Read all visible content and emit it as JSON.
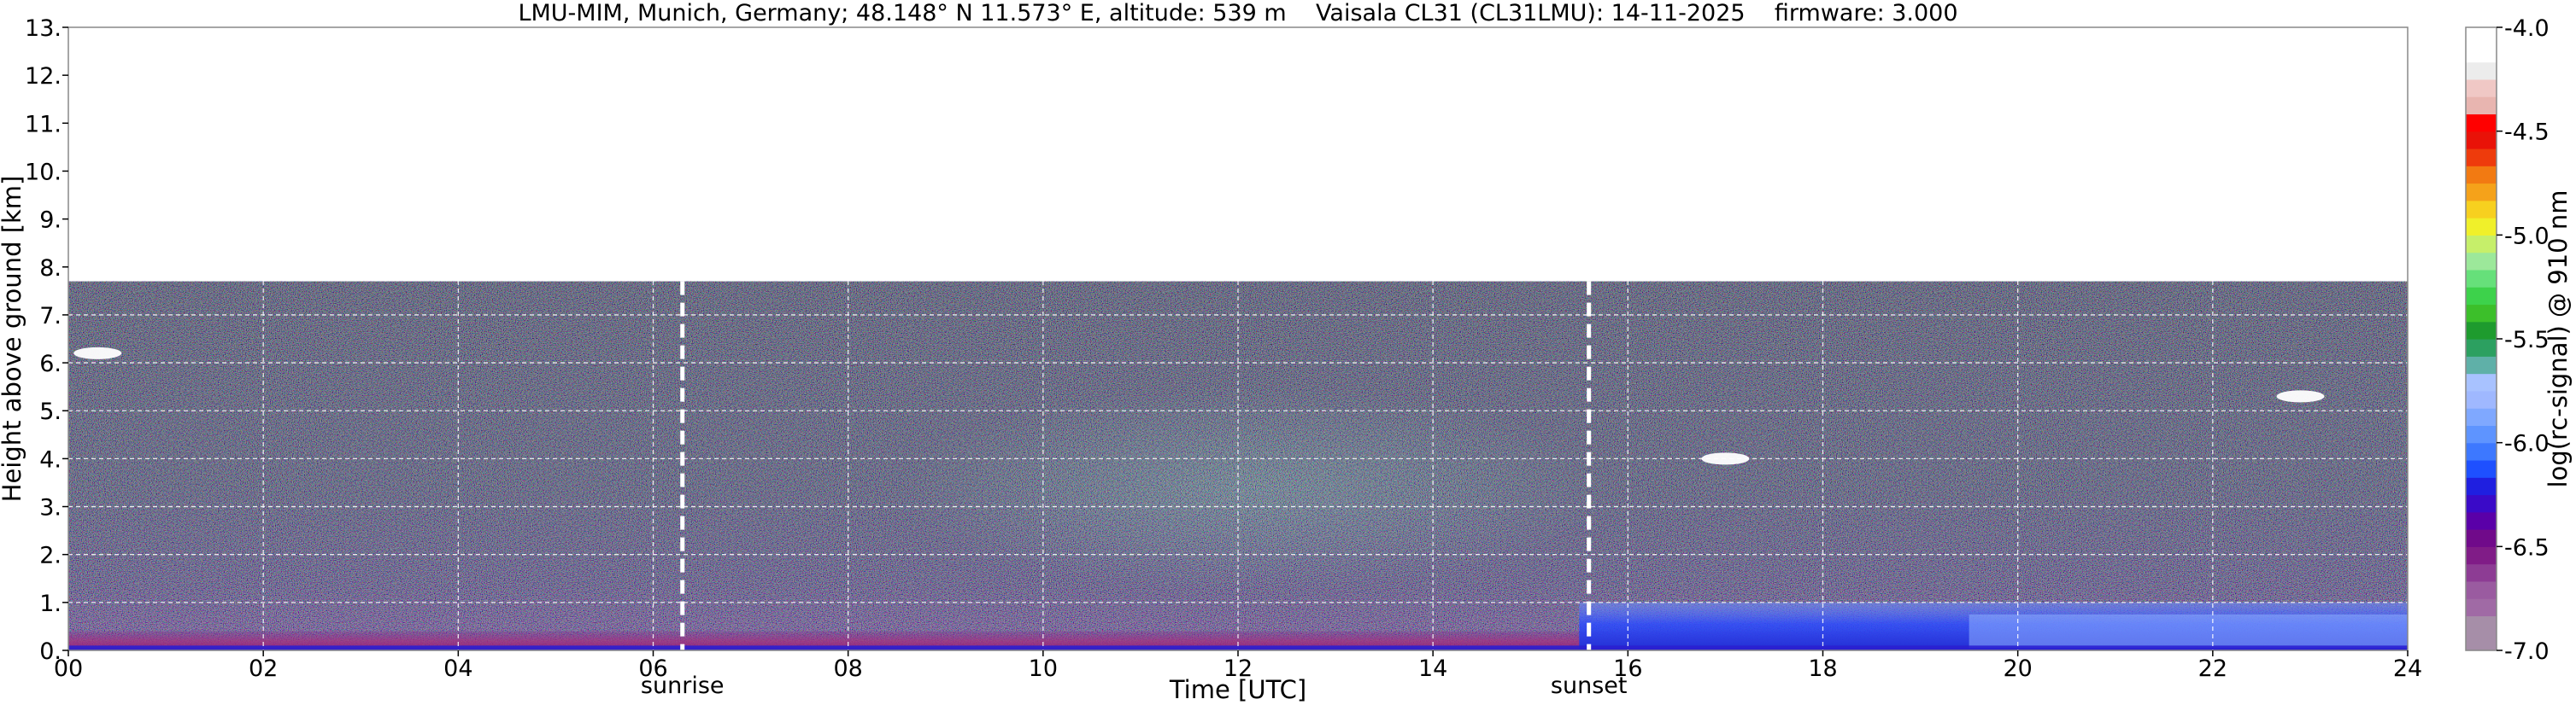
{
  "chart_data": {
    "type": "heatmap",
    "title": "LMU-MIM, Munich, Germany; 48.148° N 11.573° E, altitude: 539 m    Vaisala CL31 (CL31LMU): 14-11-2025    firmware: 3.000",
    "xlabel": "Time [UTC]",
    "ylabel": "Height above ground [km]",
    "xlim": [
      0,
      24
    ],
    "ylim": [
      0,
      13
    ],
    "x_ticks": [
      {
        "value": 0,
        "label": "00"
      },
      {
        "value": 2,
        "label": "02"
      },
      {
        "value": 4,
        "label": "04"
      },
      {
        "value": 6,
        "label": "06"
      },
      {
        "value": 8,
        "label": "08"
      },
      {
        "value": 10,
        "label": "10"
      },
      {
        "value": 12,
        "label": "12"
      },
      {
        "value": 14,
        "label": "14"
      },
      {
        "value": 16,
        "label": "16"
      },
      {
        "value": 18,
        "label": "18"
      },
      {
        "value": 20,
        "label": "20"
      },
      {
        "value": 22,
        "label": "22"
      },
      {
        "value": 24,
        "label": "24"
      }
    ],
    "y_ticks": [
      {
        "value": 0,
        "label": "0."
      },
      {
        "value": 1,
        "label": "1."
      },
      {
        "value": 2,
        "label": "2."
      },
      {
        "value": 3,
        "label": "3."
      },
      {
        "value": 4,
        "label": "4."
      },
      {
        "value": 5,
        "label": "5."
      },
      {
        "value": 6,
        "label": "6."
      },
      {
        "value": 7,
        "label": "7."
      },
      {
        "value": 8,
        "label": "8."
      },
      {
        "value": 9,
        "label": "9."
      },
      {
        "value": 10,
        "label": "10."
      },
      {
        "value": 11,
        "label": "11."
      },
      {
        "value": 12,
        "label": "12."
      },
      {
        "value": 13,
        "label": "13."
      }
    ],
    "grid": true,
    "data_top_km": 7.7,
    "annotations": [
      {
        "label": "sunrise",
        "x": 6.3
      },
      {
        "label": "sunset",
        "x": 15.6
      }
    ],
    "colorbar": {
      "label": "log(rc-signal) @ 910 nm",
      "range": [
        -7.0,
        -4.0
      ],
      "ticks": [
        {
          "value": -4.0,
          "label": "-4.0"
        },
        {
          "value": -4.5,
          "label": "-4.5"
        },
        {
          "value": -5.0,
          "label": "-5.0"
        },
        {
          "value": -5.5,
          "label": "-5.5"
        },
        {
          "value": -6.0,
          "label": "-6.0"
        },
        {
          "value": -6.5,
          "label": "-6.5"
        },
        {
          "value": -7.0,
          "label": "-7.0"
        }
      ],
      "colors": [
        "#a68ea8",
        "#a68ea8",
        "#a06aa5",
        "#9a5ba0",
        "#8d3c94",
        "#801c87",
        "#700a8a",
        "#5a00a8",
        "#3a0ac8",
        "#1f1fe0",
        "#1e50ff",
        "#3d78ff",
        "#5e94ff",
        "#7fa8ff",
        "#9fb8ff",
        "#a8c2ff",
        "#5fb0a8",
        "#2ca060",
        "#1e9b2e",
        "#3cbf2a",
        "#3dd24b",
        "#66e07a",
        "#9ce89a",
        "#c6ef6a",
        "#f0f02a",
        "#f7d01f",
        "#f5a21a",
        "#f27a12",
        "#ee3b0c",
        "#e91208",
        "#ff0000",
        "#e8b5b0",
        "#f0c8c5",
        "#ececec",
        "#ffffff",
        "#ffffff"
      ]
    },
    "features": [
      {
        "name": "surface aerosol layer",
        "x_range": [
          0,
          24
        ],
        "height_range_km": [
          0,
          0.4
        ]
      },
      {
        "name": "evening boundary layer",
        "x_range": [
          15.5,
          24
        ],
        "height_range_km": [
          0,
          1.0
        ]
      },
      {
        "name": "cloud patch",
        "x": 0.3,
        "height_km": 6.2
      },
      {
        "name": "cloud patch",
        "x": 17.0,
        "height_km": 4.0
      },
      {
        "name": "cloud patch",
        "x": 22.9,
        "height_km": 5.3
      }
    ]
  }
}
